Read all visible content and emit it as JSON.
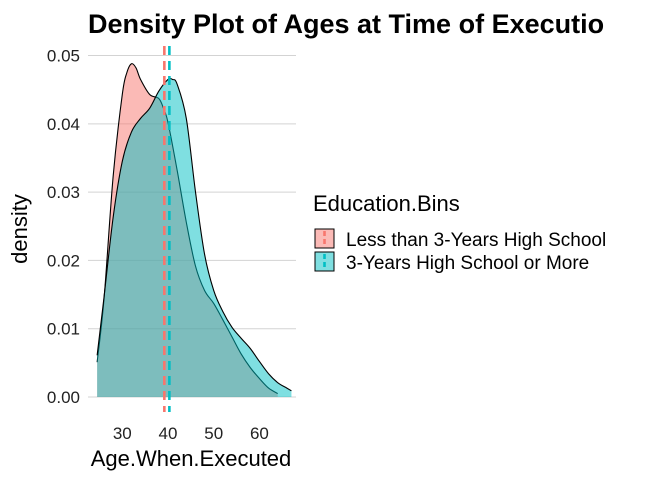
{
  "chart_data": {
    "type": "area",
    "title": "Density Plot of Ages at Time of Executio",
    "xlabel": "Age.When.Executed",
    "ylabel": "density",
    "xlim": [
      22.5,
      68
    ],
    "ylim": [
      -0.0022,
      0.0514
    ],
    "x_ticks": [
      30,
      40,
      50,
      60
    ],
    "y_ticks": [
      0.0,
      0.01,
      0.02,
      0.03,
      0.04,
      0.05
    ],
    "y_tick_labels": [
      "0.00",
      "0.01",
      "0.02",
      "0.03",
      "0.04",
      "0.05"
    ],
    "grid": "horizontal major lines only",
    "legend": {
      "title": "Education.Bins",
      "position": "right"
    },
    "series": [
      {
        "name": "Less than 3-Years High School",
        "color": "#F8766D",
        "mean": 39.2,
        "x": [
          24.5,
          26,
          28,
          30,
          31,
          32,
          33,
          34,
          36,
          38,
          39,
          40,
          42,
          44,
          46,
          48,
          50,
          52,
          54,
          56,
          58,
          60,
          62,
          64
        ],
        "y": [
          0.0051,
          0.0143,
          0.0323,
          0.0443,
          0.0475,
          0.0488,
          0.0482,
          0.0465,
          0.0443,
          0.0437,
          0.0423,
          0.0402,
          0.0332,
          0.0256,
          0.0192,
          0.0156,
          0.0137,
          0.0113,
          0.0088,
          0.0063,
          0.0043,
          0.0027,
          0.0013,
          0.0005
        ]
      },
      {
        "name": "3-Years High School or More",
        "color": "#00BFC4",
        "mean": 40.3,
        "x": [
          24.5,
          26,
          28,
          30,
          32,
          34,
          36,
          38,
          40,
          41,
          42,
          44,
          46,
          48,
          50,
          52,
          54,
          56,
          58,
          60,
          62,
          64,
          66,
          67
        ],
        "y": [
          0.0061,
          0.0146,
          0.0263,
          0.0345,
          0.0388,
          0.0408,
          0.0423,
          0.0448,
          0.0465,
          0.0465,
          0.0458,
          0.0408,
          0.0301,
          0.0209,
          0.0156,
          0.0125,
          0.0102,
          0.0086,
          0.0071,
          0.0052,
          0.0034,
          0.0021,
          0.0013,
          0.0009
        ]
      }
    ]
  }
}
